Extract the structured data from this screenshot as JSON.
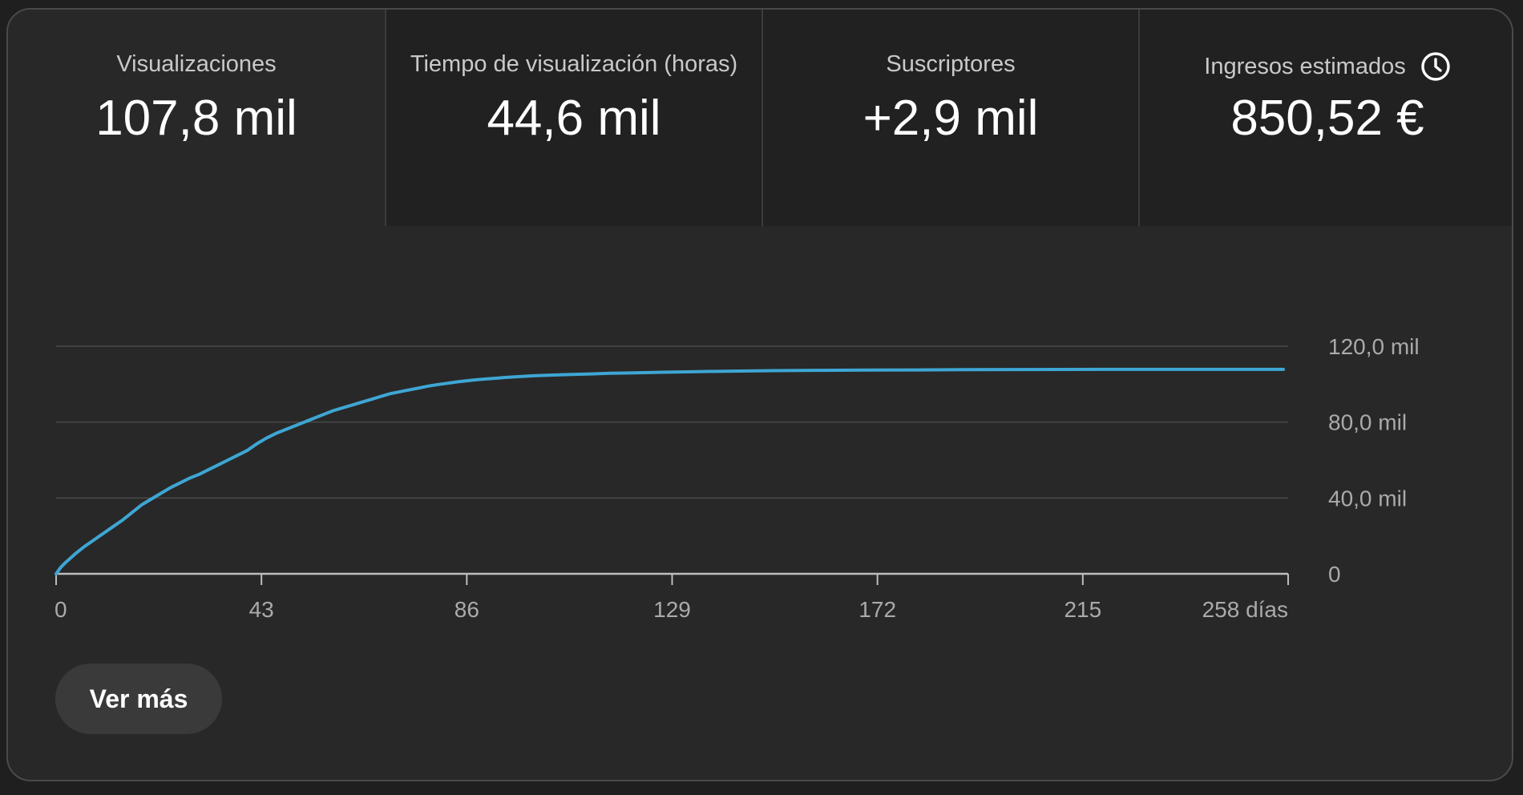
{
  "metrics": [
    {
      "label": "Visualizaciones",
      "value": "107,8 mil",
      "active": true
    },
    {
      "label": "Tiempo de visualización (horas)",
      "value": "44,6 mil",
      "active": false
    },
    {
      "label": "Suscriptores",
      "value": "+2,9 mil",
      "active": false
    },
    {
      "label": "Ingresos estimados",
      "value": "850,52 €",
      "active": false,
      "icon": "clock-icon"
    }
  ],
  "more_button": {
    "label": "Ver más"
  },
  "colors": {
    "line": "#3ea6d4",
    "background": "#282828",
    "tab_inactive": "#212121",
    "grid": "#4a4a4a",
    "axis": "#aaaaaa"
  },
  "chart_data": {
    "type": "line",
    "title": "",
    "xlabel": "",
    "ylabel": "",
    "xlim": [
      0,
      258
    ],
    "ylim": [
      0,
      120000
    ],
    "x_ticks": [
      0,
      43,
      86,
      129,
      172,
      215,
      258
    ],
    "x_tick_labels": [
      "0",
      "43",
      "86",
      "129",
      "172",
      "215",
      "258 días"
    ],
    "y_ticks": [
      0,
      40000,
      80000,
      120000
    ],
    "y_tick_labels": [
      "0",
      "40,0 mil",
      "80,0 mil",
      "120,0 mil"
    ],
    "y_axis_side": "right",
    "grid": true,
    "series": [
      {
        "x": [
          0,
          1,
          2,
          4,
          6,
          8,
          10,
          12,
          14,
          16,
          18,
          20,
          22,
          24,
          26,
          28,
          30,
          32,
          34,
          36,
          38,
          40,
          42,
          44,
          46,
          48,
          50,
          52,
          54,
          56,
          58,
          60,
          62,
          64,
          66,
          68,
          70,
          72,
          74,
          76,
          78,
          80,
          82,
          84,
          86,
          88,
          90,
          92,
          94,
          96,
          100,
          104,
          108,
          112,
          116,
          120,
          124,
          128,
          132,
          140,
          150,
          160,
          170,
          180,
          190,
          200,
          210,
          220,
          230,
          240,
          250,
          257
        ],
        "y": [
          0,
          3500,
          6000,
          10500,
          14500,
          18000,
          21500,
          25000,
          28500,
          32500,
          36500,
          39500,
          42500,
          45500,
          48000,
          50500,
          52500,
          55000,
          57500,
          60000,
          62500,
          65000,
          68500,
          71500,
          74000,
          76000,
          78000,
          80000,
          82000,
          84000,
          86000,
          87500,
          89000,
          90500,
          92000,
          93500,
          95000,
          96000,
          97000,
          98000,
          99000,
          99800,
          100500,
          101200,
          101800,
          102300,
          102700,
          103100,
          103500,
          103800,
          104400,
          104800,
          105100,
          105400,
          105700,
          105900,
          106100,
          106300,
          106500,
          106800,
          107100,
          107300,
          107400,
          107500,
          107600,
          107700,
          107750,
          107800,
          107800,
          107800,
          107800,
          107800
        ]
      }
    ]
  }
}
